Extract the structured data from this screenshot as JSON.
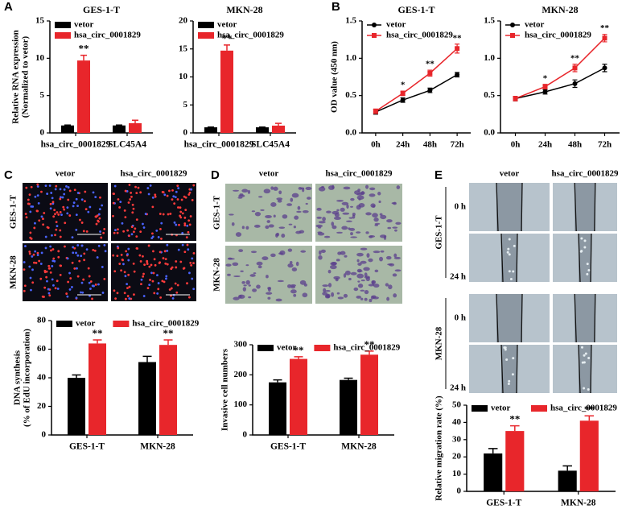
{
  "panel_labels": [
    "A",
    "B",
    "C",
    "D",
    "E"
  ],
  "chart_data": [
    {
      "type": "bar",
      "title": "GES-1-T",
      "ylabel": [
        "Relative RNA expression",
        "(Normalized to vetor)"
      ],
      "categories": [
        "hsa_circ_0001829",
        "SLC45A4"
      ],
      "series": [
        {
          "name": "vetor",
          "color": "#000000",
          "values": [
            1,
            1
          ],
          "errors": [
            0.05,
            0.05
          ]
        },
        {
          "name": "hsa_circ_0001829",
          "color": "#e8262b",
          "values": [
            9.7,
            1.3
          ],
          "errors": [
            0.7,
            0.4
          ],
          "significance": [
            "**",
            null
          ]
        }
      ],
      "ylim": [
        0,
        15
      ],
      "yticks": [
        0,
        5,
        10,
        15
      ],
      "legend": "upper left"
    },
    {
      "type": "bar",
      "title": "MKN-28",
      "categories": [
        "hsa_circ_0001829",
        "SLC45A4"
      ],
      "series": [
        {
          "name": "vetor",
          "color": "#000000",
          "values": [
            1,
            1
          ],
          "errors": [
            0.05,
            0.05
          ]
        },
        {
          "name": "hsa_circ_0001829",
          "color": "#e8262b",
          "values": [
            14.7,
            1.3
          ],
          "errors": [
            1.0,
            0.4
          ],
          "significance": [
            "**",
            null
          ]
        }
      ],
      "ylim": [
        0,
        20
      ],
      "yticks": [
        0,
        5,
        10,
        15,
        20
      ],
      "legend": "upper left"
    },
    {
      "type": "line",
      "title": "GES-1-T",
      "ylabel": "OD value (450 nm)",
      "categories": [
        "0h",
        "24h",
        "48h",
        "72h"
      ],
      "series": [
        {
          "name": "vetor",
          "color": "#000000",
          "marker": "circle",
          "values": [
            0.28,
            0.44,
            0.57,
            0.78
          ],
          "errors": [
            0.03,
            0.03,
            0.03,
            0.03
          ]
        },
        {
          "name": "hsa_circ_0001829",
          "color": "#e8262b",
          "marker": "square",
          "values": [
            0.29,
            0.53,
            0.8,
            1.13
          ],
          "errors": [
            0.03,
            0.03,
            0.04,
            0.06
          ],
          "significance": [
            null,
            "*",
            "**",
            "**"
          ]
        }
      ],
      "ylim": [
        0,
        1.5
      ],
      "yticks": [
        {
          "value": 0,
          "label": "0.0"
        },
        0.5,
        {
          "value": 1,
          "label": "1.0"
        },
        1.5
      ],
      "legend": "upper left"
    },
    {
      "type": "line",
      "title": "MKN-28",
      "categories": [
        "0h",
        "24h",
        "48h",
        "72h"
      ],
      "series": [
        {
          "name": "vetor",
          "color": "#000000",
          "marker": "circle",
          "values": [
            0.46,
            0.55,
            0.66,
            0.87
          ],
          "errors": [
            0.03,
            0.03,
            0.05,
            0.05
          ]
        },
        {
          "name": "hsa_circ_0001829",
          "color": "#e8262b",
          "marker": "square",
          "values": [
            0.46,
            0.62,
            0.87,
            1.27
          ],
          "errors": [
            0.03,
            0.03,
            0.05,
            0.05
          ],
          "significance": [
            null,
            "*",
            "**",
            "**"
          ]
        }
      ],
      "ylim": [
        0,
        1.5
      ],
      "yticks": [
        {
          "value": 0,
          "label": "0.0"
        },
        0.5,
        {
          "value": 1,
          "label": "1.0"
        },
        1.5
      ],
      "legend": "upper left"
    },
    {
      "type": "bar",
      "ylabel": [
        "DNA synthesis",
        "(% of EdU incorporation)"
      ],
      "categories": [
        "GES-1-T",
        "MKN-28"
      ],
      "series": [
        {
          "name": "vetor",
          "color": "#000000",
          "values": [
            40,
            51
          ],
          "errors": [
            2,
            4
          ]
        },
        {
          "name": "hsa_circ_0001829",
          "color": "#e8262b",
          "values": [
            64,
            63
          ],
          "errors": [
            2.5,
            3.5
          ],
          "significance": [
            "**",
            "**"
          ]
        }
      ],
      "ylim": [
        0,
        80
      ],
      "yticks": [
        0,
        20,
        40,
        60,
        80
      ],
      "legend": "top"
    },
    {
      "type": "bar",
      "ylabel": "Invasive cell numbers",
      "categories": [
        "GES-1-T",
        "MKN-28"
      ],
      "series": [
        {
          "name": "vetor",
          "color": "#000000",
          "values": [
            175,
            183
          ],
          "errors": [
            8,
            6
          ]
        },
        {
          "name": "hsa_circ_0001829",
          "color": "#e8262b",
          "values": [
            253,
            267
          ],
          "errors": [
            7,
            12
          ],
          "significance": [
            "**",
            "**"
          ]
        }
      ],
      "ylim": [
        0,
        300
      ],
      "yticks": [
        0,
        100,
        200,
        300
      ],
      "legend": "top"
    },
    {
      "type": "bar",
      "ylabel": "Relative migration rate (%)",
      "categories": [
        "GES-1-T",
        "MKN-28"
      ],
      "series": [
        {
          "name": "vetor",
          "color": "#000000",
          "values": [
            22,
            12
          ],
          "errors": [
            2.8,
            2.8
          ]
        },
        {
          "name": "hsa_circ_0001829",
          "color": "#e8262b",
          "values": [
            35,
            41
          ],
          "errors": [
            3,
            2.8
          ],
          "significance": [
            "**",
            "**"
          ]
        }
      ],
      "ylim": [
        0,
        50
      ],
      "yticks": [
        0,
        10,
        20,
        30,
        40,
        50
      ],
      "legend": "top"
    }
  ],
  "image_panels": [
    {
      "columns": [
        "vetor",
        "hsa_circ_0001829"
      ],
      "rows": [
        "GES-1-T",
        "MKN-28"
      ]
    },
    {
      "columns": [
        "vetor",
        "hsa_circ_0001829"
      ],
      "rows": [
        "GES-1-T",
        "MKN-28"
      ]
    },
    {
      "columns": [
        "vetor",
        "hsa_circ_0001829"
      ],
      "rows": [
        "GES-1-T",
        "MKN-28"
      ],
      "times": [
        "0 h",
        "24 h"
      ]
    }
  ]
}
